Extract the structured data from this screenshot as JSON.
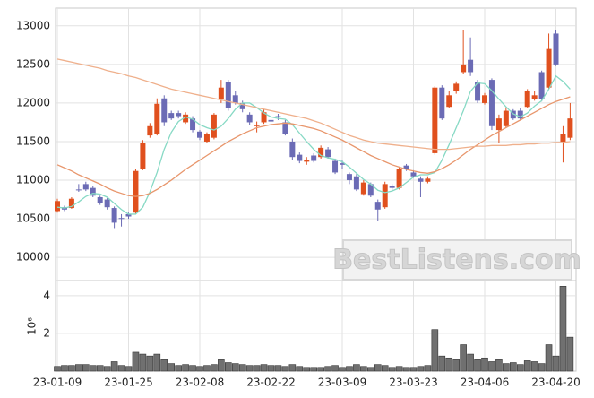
{
  "chart_data": [
    {
      "type": "candlestick",
      "categories": [
        "23-01-09",
        null,
        null,
        null,
        null,
        null,
        null,
        null,
        null,
        null,
        "23-01-25",
        null,
        null,
        null,
        null,
        null,
        null,
        null,
        null,
        null,
        "23-02-08",
        null,
        null,
        null,
        null,
        null,
        null,
        null,
        null,
        null,
        "23-02-22",
        null,
        null,
        null,
        null,
        null,
        null,
        null,
        null,
        null,
        "23-03-09",
        null,
        null,
        null,
        null,
        null,
        null,
        null,
        null,
        null,
        "23-03-23",
        null,
        null,
        null,
        null,
        null,
        null,
        null,
        null,
        null,
        "23-04-06",
        null,
        null,
        null,
        null,
        null,
        null,
        null,
        null,
        null,
        "23-04-20",
        null,
        null
      ],
      "open": [
        10600,
        10650,
        10640,
        10880,
        10950,
        10900,
        10780,
        10750,
        10640,
        10510,
        10560,
        10580,
        11150,
        11580,
        11600,
        12060,
        11870,
        11870,
        11750,
        11800,
        11630,
        11500,
        11550,
        12050,
        12270,
        12100,
        12000,
        11850,
        11700,
        11750,
        11780,
        11830,
        11750,
        11500,
        11330,
        11240,
        11320,
        11300,
        11400,
        11250,
        11220,
        11080,
        11050,
        10820,
        10950,
        10720,
        10650,
        10920,
        10900,
        11190,
        11100,
        11020,
        10980,
        11350,
        12200,
        11950,
        12150,
        12400,
        12560,
        12270,
        12000,
        12300,
        11650,
        11700,
        11900,
        11900,
        11950,
        12050,
        12400,
        12200,
        12900,
        11500,
        11550
      ],
      "high": [
        10760,
        10670,
        10780,
        10950,
        10980,
        10920,
        10800,
        10770,
        10660,
        10560,
        10580,
        11150,
        11520,
        11740,
        12060,
        12100,
        11900,
        11900,
        11880,
        11830,
        11650,
        11620,
        11870,
        12300,
        12300,
        12150,
        12030,
        11880,
        11760,
        11920,
        11830,
        11860,
        11780,
        11540,
        11360,
        11300,
        11350,
        11450,
        11430,
        11280,
        11260,
        11100,
        11080,
        11000,
        10970,
        10750,
        10980,
        10950,
        11170,
        11210,
        11130,
        11050,
        11050,
        12220,
        12230,
        12150,
        12280,
        12950,
        12850,
        12300,
        12130,
        12320,
        11850,
        11950,
        11920,
        11930,
        12180,
        12150,
        12420,
        12900,
        12950,
        11700,
        12000
      ],
      "low": [
        10580,
        10600,
        10630,
        10850,
        10860,
        10780,
        10680,
        10620,
        10380,
        10400,
        10500,
        10560,
        11130,
        11550,
        11580,
        11700,
        11780,
        11800,
        11730,
        11620,
        11520,
        11480,
        11530,
        12000,
        11900,
        11980,
        11880,
        11720,
        11620,
        11730,
        11700,
        11780,
        11580,
        11260,
        11220,
        11200,
        11230,
        11280,
        11280,
        11080,
        11150,
        10950,
        10860,
        10800,
        10780,
        10470,
        10630,
        10870,
        10880,
        11120,
        11030,
        10780,
        10960,
        11330,
        11780,
        11930,
        12120,
        12380,
        12350,
        12000,
        11980,
        11650,
        11480,
        11680,
        11780,
        11780,
        11930,
        12030,
        12020,
        12180,
        12480,
        11230,
        11520
      ],
      "close": [
        10730,
        10620,
        10760,
        10870,
        10880,
        10800,
        10700,
        10650,
        10450,
        10500,
        10530,
        11120,
        11480,
        11700,
        11990,
        11750,
        11800,
        11830,
        11850,
        11650,
        11550,
        11600,
        11850,
        12200,
        11930,
        12000,
        11920,
        11750,
        11720,
        11880,
        11760,
        11820,
        11600,
        11300,
        11250,
        11260,
        11250,
        11420,
        11300,
        11100,
        11200,
        11000,
        10880,
        10970,
        10800,
        10620,
        10950,
        10900,
        11150,
        11150,
        11050,
        10980,
        11020,
        12200,
        11800,
        12100,
        12250,
        12500,
        12400,
        12030,
        12100,
        11700,
        11800,
        11900,
        11800,
        11800,
        12150,
        12100,
        12050,
        12700,
        12500,
        11600,
        11800
      ],
      "up_color": "#e0501e",
      "down_color": "#6b6bb5",
      "series": [
        {
          "color": "#86d9c4",
          "values": [
            10650,
            10640,
            10660,
            10720,
            10790,
            10830,
            10820,
            10780,
            10700,
            10620,
            10560,
            10560,
            10650,
            10850,
            11100,
            11400,
            11620,
            11760,
            11820,
            11790,
            11720,
            11680,
            11650,
            11700,
            11800,
            11920,
            12000,
            12000,
            11940,
            11870,
            11820,
            11800,
            11790,
            11720,
            11610,
            11500,
            11400,
            11320,
            11290,
            11270,
            11240,
            11170,
            11090,
            11010,
            10950,
            10870,
            10840,
            10860,
            10900,
            10970,
            11040,
            11070,
            11070,
            11100,
            11260,
            11460,
            11680,
            11900,
            12150,
            12260,
            12250,
            12160,
            12050,
            11950,
            11860,
            11820,
            11870,
            11960,
            12030,
            12180,
            12350,
            12280,
            12180
          ]
        },
        {
          "color": "#e8966c",
          "values": [
            11200,
            11160,
            11120,
            11070,
            11030,
            10990,
            10950,
            10900,
            10860,
            10830,
            10800,
            10790,
            10800,
            10830,
            10880,
            10940,
            11000,
            11070,
            11140,
            11200,
            11260,
            11320,
            11380,
            11440,
            11500,
            11550,
            11600,
            11640,
            11680,
            11700,
            11720,
            11730,
            11740,
            11730,
            11710,
            11690,
            11670,
            11640,
            11600,
            11560,
            11520,
            11470,
            11420,
            11370,
            11320,
            11280,
            11240,
            11200,
            11170,
            11140,
            11120,
            11100,
            11090,
            11110,
            11150,
            11200,
            11260,
            11330,
            11400,
            11460,
            11520,
            11580,
            11630,
            11680,
            11730,
            11780,
            11830,
            11880,
            11930,
            11980,
            12020,
            12050,
            12080
          ]
        },
        {
          "color": "#efb08c",
          "values": [
            12570,
            12550,
            12530,
            12510,
            12490,
            12470,
            12450,
            12420,
            12400,
            12380,
            12350,
            12330,
            12300,
            12270,
            12240,
            12210,
            12180,
            12160,
            12140,
            12120,
            12100,
            12080,
            12060,
            12040,
            12020,
            12000,
            11980,
            11960,
            11940,
            11920,
            11900,
            11880,
            11860,
            11840,
            11820,
            11800,
            11770,
            11740,
            11700,
            11660,
            11620,
            11580,
            11550,
            11520,
            11500,
            11480,
            11470,
            11460,
            11450,
            11440,
            11430,
            11420,
            11410,
            11400,
            11400,
            11400,
            11410,
            11420,
            11430,
            11440,
            11440,
            11450,
            11450,
            11450,
            11460,
            11460,
            11470,
            11470,
            11480,
            11480,
            11490,
            11490,
            11500
          ]
        }
      ],
      "ylim": [
        9700,
        13230
      ],
      "yticks": [
        10000,
        10500,
        11000,
        11500,
        12000,
        12500,
        13000
      ],
      "grid": true,
      "watermark": "BestListens.com"
    },
    {
      "type": "bar",
      "ylabel": "10⁶",
      "color": "#707070",
      "values": [
        0.25,
        0.3,
        0.3,
        0.35,
        0.35,
        0.3,
        0.3,
        0.25,
        0.5,
        0.3,
        0.25,
        1.0,
        0.9,
        0.8,
        0.9,
        0.6,
        0.4,
        0.3,
        0.35,
        0.3,
        0.25,
        0.3,
        0.35,
        0.6,
        0.45,
        0.4,
        0.35,
        0.3,
        0.3,
        0.35,
        0.3,
        0.3,
        0.25,
        0.35,
        0.25,
        0.2,
        0.2,
        0.2,
        0.25,
        0.3,
        0.2,
        0.25,
        0.35,
        0.25,
        0.2,
        0.35,
        0.3,
        0.2,
        0.25,
        0.2,
        0.2,
        0.25,
        0.3,
        2.2,
        0.8,
        0.7,
        0.6,
        1.4,
        0.9,
        0.6,
        0.7,
        0.5,
        0.6,
        0.4,
        0.45,
        0.35,
        0.55,
        0.5,
        0.4,
        1.4,
        0.8,
        4.5,
        1.8
      ],
      "ylim": [
        0,
        4.8
      ],
      "yticks": [
        2,
        4
      ],
      "grid": true
    }
  ]
}
